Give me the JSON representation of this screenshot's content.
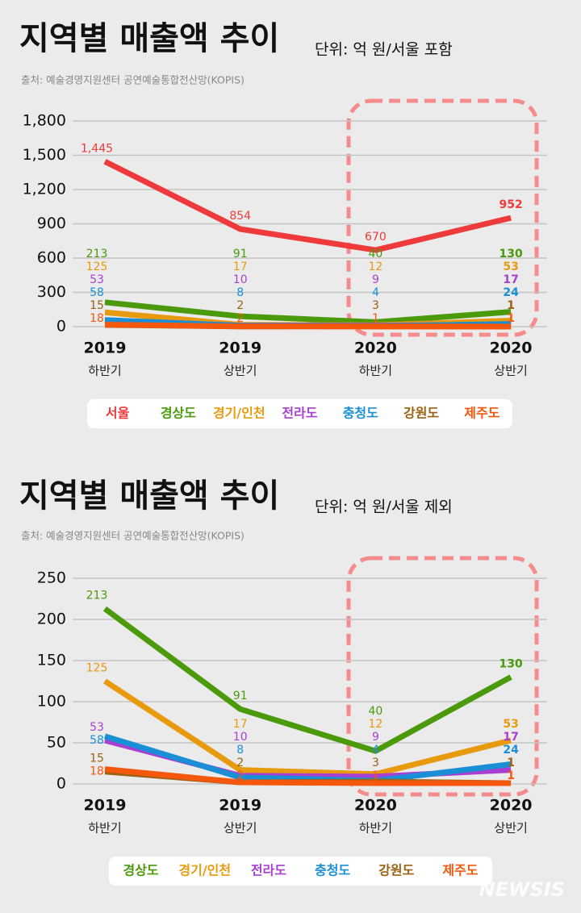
{
  "watermark": "NEWSIS",
  "chart_data": [
    {
      "type": "line",
      "title": "지역별 매출액 추이",
      "subtitle": "단위: 억 원/서울 포함",
      "source": "출처: 예술경영지원센터 공연예술통합전산망(KOPIS)",
      "categories": [
        [
          "2019",
          "하반기"
        ],
        [
          "2019",
          "상반기"
        ],
        [
          "2020",
          "하반기"
        ],
        [
          "2020",
          "상반기"
        ]
      ],
      "series": [
        {
          "name": "서울",
          "color": "#ee3a3a",
          "values": [
            1445,
            854,
            670,
            952
          ],
          "value_labels": [
            "1,445",
            "854",
            "670",
            "952"
          ]
        },
        {
          "name": "경상도",
          "color": "#4a9a0c",
          "values": [
            213,
            91,
            40,
            130
          ]
        },
        {
          "name": "경기/인천",
          "color": "#e89a0f",
          "values": [
            125,
            17,
            12,
            53
          ]
        },
        {
          "name": "전라도",
          "color": "#a83fd0",
          "values": [
            53,
            10,
            9,
            17
          ]
        },
        {
          "name": "충청도",
          "color": "#1b8fd6",
          "values": [
            58,
            8,
            4,
            24
          ]
        },
        {
          "name": "강원도",
          "color": "#9a6212",
          "values": [
            15,
            2,
            3,
            1
          ]
        },
        {
          "name": "제주도",
          "color": "#f5570c",
          "values": [
            18,
            2,
            1,
            1
          ]
        }
      ],
      "ylim": [
        0,
        1800
      ],
      "yticks": [
        0,
        300,
        600,
        900,
        {
          "value": 1200,
          "label": "1,200"
        },
        {
          "value": 1500,
          "label": "1,500"
        },
        {
          "value": 1800,
          "label": "1,800"
        }
      ],
      "grid": true
    },
    {
      "type": "line",
      "title": "지역별 매출액 추이",
      "subtitle": "단위: 억 원/서울 제외",
      "source": "출처: 예술경영지원센터 공연예술통합전산망(KOPIS)",
      "categories": [
        [
          "2019",
          "하반기"
        ],
        [
          "2019",
          "상반기"
        ],
        [
          "2020",
          "하반기"
        ],
        [
          "2020",
          "상반기"
        ]
      ],
      "series": [
        {
          "name": "경상도",
          "color": "#4a9a0c",
          "values": [
            213,
            91,
            40,
            130
          ]
        },
        {
          "name": "경기/인천",
          "color": "#e89a0f",
          "values": [
            125,
            17,
            12,
            53
          ]
        },
        {
          "name": "전라도",
          "color": "#a83fd0",
          "values": [
            53,
            10,
            9,
            17
          ]
        },
        {
          "name": "충청도",
          "color": "#1b8fd6",
          "values": [
            58,
            8,
            4,
            24
          ]
        },
        {
          "name": "강원도",
          "color": "#9a6212",
          "values": [
            15,
            2,
            3,
            1
          ]
        },
        {
          "name": "제주도",
          "color": "#f5570c",
          "values": [
            18,
            2,
            1,
            1
          ]
        }
      ],
      "ylim": [
        0,
        250
      ],
      "yticks": [
        0,
        50,
        100,
        150,
        200,
        250
      ],
      "grid": true
    }
  ]
}
